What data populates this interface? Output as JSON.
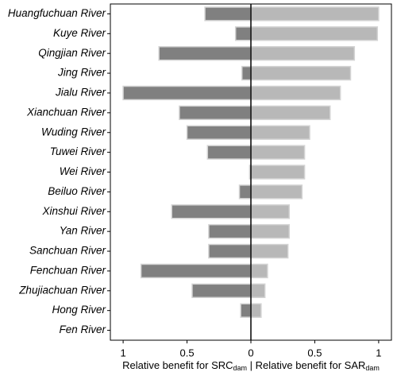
{
  "chart_data": {
    "type": "diverging-bar",
    "categories": [
      "Huangfuchuan River",
      "Kuye River",
      "Qingjian River",
      "Jing River",
      "Jialu River",
      "Xianchuan River",
      "Wuding River",
      "Tuwei River",
      "Wei River",
      "Beiluo River",
      "Xinshui River",
      "Yan River",
      "Sanchuan River",
      "Fenchuan River",
      "Zhujiachuan River",
      "Hong River",
      "Fen River"
    ],
    "series": [
      {
        "direction": "left",
        "color": "#808080",
        "values": [
          0.36,
          0.12,
          0.72,
          0.07,
          1.0,
          0.56,
          0.5,
          0.34,
          0.01,
          0.09,
          0.62,
          0.33,
          0.33,
          0.86,
          0.46,
          0.08,
          0
        ]
      },
      {
        "direction": "right",
        "color": "#b8b8b8",
        "values": [
          1.0,
          0.99,
          0.81,
          0.78,
          0.7,
          0.62,
          0.46,
          0.42,
          0.42,
          0.4,
          0.3,
          0.3,
          0.29,
          0.13,
          0.11,
          0.08,
          0
        ]
      }
    ],
    "xlim": [
      -1.1,
      1.1
    ],
    "xticks": [
      {
        "value": -1,
        "label": "1"
      },
      {
        "value": -0.5,
        "label": "0.5"
      },
      0,
      0.5,
      1
    ],
    "xlabel": {
      "left": "Relative benefit for SRC",
      "left_sub": "dam",
      "sep": " | ",
      "right": "Relative benefit for SAR",
      "right_sub": "dam"
    }
  }
}
